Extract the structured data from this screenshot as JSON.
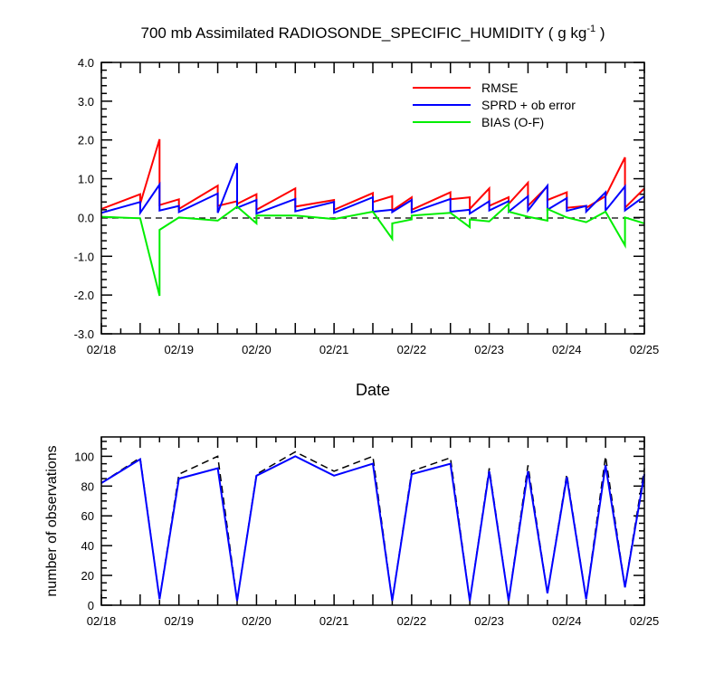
{
  "figure": {
    "title_prefix": "700 mb Assimilated RADIOSONDE_SPECIFIC_HUMIDITY ( g kg",
    "title_sup": "-1",
    "title_suffix": " )",
    "xlabel": "Date",
    "ylabel_bottom": "number of observations"
  },
  "chart_data": [
    {
      "type": "line",
      "panel": "top",
      "x_ticks": [
        "02/18",
        "02/19",
        "02/20",
        "02/21",
        "02/22",
        "02/23",
        "02/24",
        "02/25"
      ],
      "xlim": [
        0,
        7
      ],
      "ylim": [
        -3,
        4
      ],
      "y_ticks": [
        "-3.0",
        "-2.0",
        "-1.0",
        "0.0",
        "1.0",
        "2.0",
        "3.0",
        "4.0"
      ],
      "grid": false,
      "legend_position": "top-right",
      "zero_line": "dashed",
      "series": [
        {
          "name": "RMSE",
          "color": "#ff0000",
          "points": [
            [
              0,
              0.22
            ],
            [
              0.5,
              0.6
            ],
            [
              0.5,
              0.35
            ],
            [
              0.75,
              2.02
            ],
            [
              0.75,
              0.32
            ],
            [
              1,
              0.47
            ],
            [
              1,
              0.22
            ],
            [
              1.5,
              0.82
            ],
            [
              1.5,
              0.3
            ],
            [
              1.75,
              0.42
            ],
            [
              1.75,
              0.35
            ],
            [
              2,
              0.6
            ],
            [
              2,
              0.2
            ],
            [
              2.5,
              0.75
            ],
            [
              2.5,
              0.28
            ],
            [
              3,
              0.45
            ],
            [
              3,
              0.2
            ],
            [
              3.5,
              0.63
            ],
            [
              3.5,
              0.4
            ],
            [
              3.75,
              0.55
            ],
            [
              3.75,
              0.18
            ],
            [
              4,
              0.52
            ],
            [
              4,
              0.2
            ],
            [
              4.5,
              0.65
            ],
            [
              4.5,
              0.47
            ],
            [
              4.75,
              0.52
            ],
            [
              4.75,
              0.22
            ],
            [
              5,
              0.75
            ],
            [
              5,
              0.3
            ],
            [
              5.25,
              0.52
            ],
            [
              5.25,
              0.35
            ],
            [
              5.5,
              0.9
            ],
            [
              5.5,
              0.3
            ],
            [
              5.75,
              0.8
            ],
            [
              5.75,
              0.45
            ],
            [
              6,
              0.65
            ],
            [
              6,
              0.25
            ],
            [
              6.25,
              0.3
            ],
            [
              6.25,
              0.25
            ],
            [
              6.5,
              0.55
            ],
            [
              6.75,
              1.55
            ],
            [
              6.75,
              0.25
            ],
            [
              7,
              0.75
            ]
          ]
        },
        {
          "name": "SPRD + ob error",
          "color": "#0000ff",
          "points": [
            [
              0,
              0.12
            ],
            [
              0.5,
              0.4
            ],
            [
              0.5,
              0.12
            ],
            [
              0.75,
              0.85
            ],
            [
              0.75,
              0.18
            ],
            [
              1,
              0.3
            ],
            [
              1,
              0.14
            ],
            [
              1.5,
              0.62
            ],
            [
              1.5,
              0.12
            ],
            [
              1.75,
              1.4
            ],
            [
              1.75,
              0.25
            ],
            [
              2,
              0.45
            ],
            [
              2,
              0.1
            ],
            [
              2.5,
              0.48
            ],
            [
              2.5,
              0.16
            ],
            [
              3,
              0.4
            ],
            [
              3,
              0.12
            ],
            [
              3.5,
              0.52
            ],
            [
              3.5,
              0.15
            ],
            [
              3.75,
              0.2
            ],
            [
              3.75,
              0.14
            ],
            [
              4,
              0.45
            ],
            [
              4,
              0.13
            ],
            [
              4.5,
              0.48
            ],
            [
              4.5,
              0.15
            ],
            [
              4.75,
              0.2
            ],
            [
              4.75,
              0.1
            ],
            [
              5,
              0.42
            ],
            [
              5,
              0.18
            ],
            [
              5.25,
              0.42
            ],
            [
              5.25,
              0.15
            ],
            [
              5.5,
              0.55
            ],
            [
              5.5,
              0.18
            ],
            [
              5.75,
              0.82
            ],
            [
              5.75,
              0.2
            ],
            [
              6,
              0.5
            ],
            [
              6,
              0.17
            ],
            [
              6.25,
              0.3
            ],
            [
              6.25,
              0.15
            ],
            [
              6.5,
              0.65
            ],
            [
              6.5,
              0.18
            ],
            [
              6.75,
              0.8
            ],
            [
              6.75,
              0.18
            ],
            [
              7,
              0.55
            ]
          ]
        },
        {
          "name": "BIAS (O-F)",
          "color": "#00ee00",
          "points": [
            [
              0,
              0.02
            ],
            [
              0.5,
              -0.02
            ],
            [
              0.75,
              -2.02
            ],
            [
              0.75,
              -0.32
            ],
            [
              1,
              0.0
            ],
            [
              1.5,
              -0.08
            ],
            [
              1.75,
              0.28
            ],
            [
              2,
              -0.15
            ],
            [
              2,
              0.05
            ],
            [
              2.5,
              0.05
            ],
            [
              3,
              -0.04
            ],
            [
              3.5,
              0.15
            ],
            [
              3.75,
              -0.55
            ],
            [
              3.75,
              -0.15
            ],
            [
              4,
              -0.05
            ],
            [
              4,
              0.05
            ],
            [
              4.5,
              0.12
            ],
            [
              4.75,
              -0.25
            ],
            [
              4.75,
              -0.05
            ],
            [
              5,
              -0.1
            ],
            [
              5.25,
              0.35
            ],
            [
              5.25,
              0.15
            ],
            [
              5.5,
              0.02
            ],
            [
              5.75,
              -0.08
            ],
            [
              5.75,
              0.22
            ],
            [
              6,
              0.0
            ],
            [
              6.25,
              -0.12
            ],
            [
              6.5,
              0.15
            ],
            [
              6.75,
              -0.72
            ],
            [
              6.75,
              0.0
            ],
            [
              7,
              -0.15
            ]
          ]
        }
      ]
    },
    {
      "type": "line",
      "panel": "bottom",
      "x_ticks": [
        "02/18",
        "02/19",
        "02/20",
        "02/21",
        "02/22",
        "02/23",
        "02/24",
        "02/25"
      ],
      "xlim": [
        0,
        7
      ],
      "ylim": [
        0,
        113
      ],
      "y_ticks": [
        "0",
        "20",
        "40",
        "60",
        "80",
        "100"
      ],
      "ylabel": "number of observations",
      "grid": false,
      "series": [
        {
          "color": "#000000",
          "dash": "dashed",
          "points": [
            [
              0,
              82
            ],
            [
              0.5,
              99
            ],
            [
              0.75,
              4
            ],
            [
              1,
              88
            ],
            [
              1.5,
              100
            ],
            [
              1.75,
              3
            ],
            [
              2,
              88
            ],
            [
              2.5,
              103
            ],
            [
              3,
              90
            ],
            [
              3.5,
              100
            ],
            [
              3.75,
              3
            ],
            [
              4,
              90
            ],
            [
              4.5,
              99
            ],
            [
              4.75,
              3
            ],
            [
              5,
              92
            ],
            [
              5.25,
              3
            ],
            [
              5.5,
              94
            ],
            [
              5.75,
              8
            ],
            [
              6,
              88
            ],
            [
              6.25,
              4
            ],
            [
              6.5,
              100
            ],
            [
              6.75,
              12
            ],
            [
              7,
              92
            ]
          ]
        },
        {
          "color": "#0000ff",
          "dash": "solid",
          "points": [
            [
              0,
              82
            ],
            [
              0.5,
              98
            ],
            [
              0.75,
              4
            ],
            [
              1,
              85
            ],
            [
              1.5,
              92
            ],
            [
              1.75,
              3
            ],
            [
              2,
              87
            ],
            [
              2.5,
              100
            ],
            [
              3,
              87
            ],
            [
              3.5,
              95
            ],
            [
              3.75,
              3
            ],
            [
              4,
              88
            ],
            [
              4.5,
              95
            ],
            [
              4.75,
              3
            ],
            [
              5,
              90
            ],
            [
              5.25,
              3
            ],
            [
              5.5,
              90
            ],
            [
              5.75,
              8
            ],
            [
              6,
              86
            ],
            [
              6.25,
              4
            ],
            [
              6.5,
              94
            ],
            [
              6.75,
              12
            ],
            [
              7,
              88
            ]
          ]
        }
      ]
    }
  ]
}
